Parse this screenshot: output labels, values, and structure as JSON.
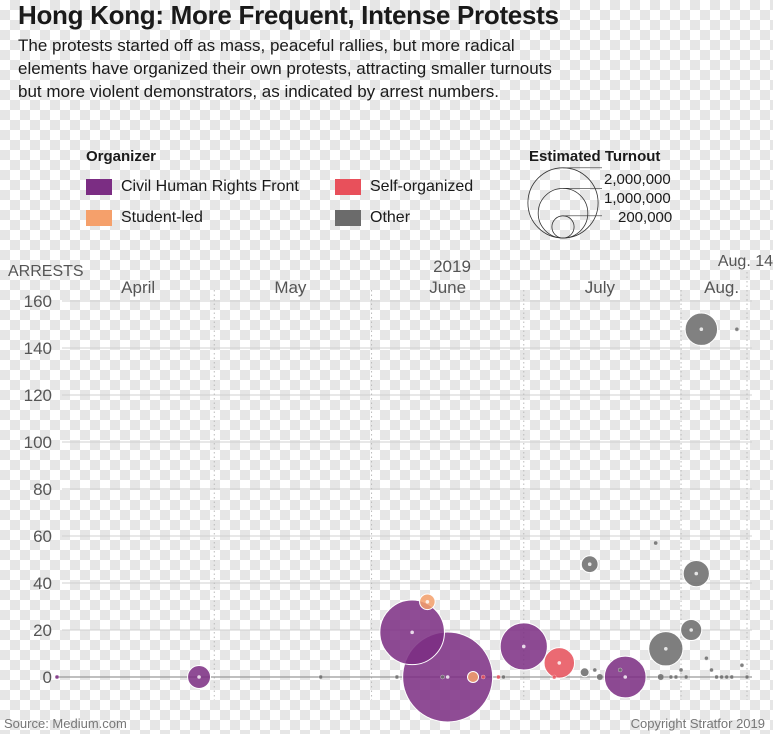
{
  "title": "Hong Kong: More Frequent, Intense Protests",
  "subtitle_lines": [
    "The protests started off as mass, peaceful rallies, but more radical",
    "elements have organized their own protests, attracting smaller turnouts",
    "but more violent demonstrators, as indicated by arrest numbers."
  ],
  "legend": {
    "organizer_heading": "Organizer",
    "turnout_heading": "Estimated Turnout",
    "organizers": [
      {
        "label": "Civil Human Rights Front",
        "color": "#7b2d83"
      },
      {
        "label": "Self-organized",
        "color": "#e8505b"
      },
      {
        "label": "Student-led",
        "color": "#f5a06b"
      },
      {
        "label": "Other",
        "color": "#6b6b6b"
      }
    ],
    "turnout_sizes": [
      "2,000,000",
      "1,000,000",
      "200,000"
    ]
  },
  "source": "Source: Medium.com",
  "copyright": "Copyright Stratfor 2019",
  "chart_data": {
    "type": "scatter",
    "ylabel": "ARRESTS",
    "year_label": "2019",
    "ylim": [
      0,
      160
    ],
    "yticks": [
      0,
      20,
      40,
      60,
      80,
      100,
      120,
      140,
      160
    ],
    "month_labels": [
      "April",
      "May",
      "June",
      "July",
      "Aug."
    ],
    "end_label": "Aug. 14",
    "grid": true,
    "series": [
      {
        "name": "Civil Human Rights Front",
        "color": "#7b2d83",
        "points": [
          {
            "date": "2019-03-31",
            "arrests": 0,
            "turnout": 2000
          },
          {
            "date": "2019-04-28",
            "arrests": 0,
            "turnout": 130000
          },
          {
            "date": "2019-06-09",
            "arrests": 19,
            "turnout": 1030000
          },
          {
            "date": "2019-06-16",
            "arrests": 0,
            "turnout": 2000000
          },
          {
            "date": "2019-07-01",
            "arrests": 13,
            "turnout": 550000
          },
          {
            "date": "2019-07-21",
            "arrests": 0,
            "turnout": 430000
          }
        ]
      },
      {
        "name": "Student-led",
        "color": "#f5a06b",
        "points": [
          {
            "date": "2019-06-12",
            "arrests": 32,
            "turnout": 60000
          },
          {
            "date": "2019-06-21",
            "arrests": 0,
            "turnout": 30000
          }
        ]
      },
      {
        "name": "Self-organized",
        "color": "#e8505b",
        "points": [
          {
            "date": "2019-06-23",
            "arrests": 0,
            "turnout": 1500
          },
          {
            "date": "2019-06-26",
            "arrests": 0,
            "turnout": 1500
          },
          {
            "date": "2019-07-07",
            "arrests": 0,
            "turnout": 1500
          },
          {
            "date": "2019-07-08",
            "arrests": 6,
            "turnout": 230000
          }
        ]
      },
      {
        "name": "Other",
        "color": "#6b6b6b",
        "points": [
          {
            "date": "2019-05-22",
            "arrests": 0,
            "turnout": 1500
          },
          {
            "date": "2019-06-06",
            "arrests": 0,
            "turnout": 1500
          },
          {
            "date": "2019-06-15",
            "arrests": 0,
            "turnout": 3000
          },
          {
            "date": "2019-06-27",
            "arrests": 0,
            "turnout": 1500
          },
          {
            "date": "2019-07-13",
            "arrests": 2,
            "turnout": 20000
          },
          {
            "date": "2019-07-14",
            "arrests": 48,
            "turnout": 70000
          },
          {
            "date": "2019-07-15",
            "arrests": 3,
            "turnout": 3000
          },
          {
            "date": "2019-07-16",
            "arrests": 0,
            "turnout": 10000
          },
          {
            "date": "2019-07-20",
            "arrests": 3,
            "turnout": 3000
          },
          {
            "date": "2019-07-27",
            "arrests": 57,
            "turnout": 4000
          },
          {
            "date": "2019-07-28",
            "arrests": 0,
            "turnout": 10000
          },
          {
            "date": "2019-07-29",
            "arrests": 12,
            "turnout": 290000
          },
          {
            "date": "2019-07-30",
            "arrests": 0,
            "turnout": 1500
          },
          {
            "date": "2019-07-31",
            "arrests": 0,
            "turnout": 1500
          },
          {
            "date": "2019-08-01",
            "arrests": 3,
            "turnout": 2000
          },
          {
            "date": "2019-08-02",
            "arrests": 0,
            "turnout": 1500
          },
          {
            "date": "2019-08-03",
            "arrests": 20,
            "turnout": 110000
          },
          {
            "date": "2019-08-04",
            "arrests": 44,
            "turnout": 170000
          },
          {
            "date": "2019-08-05",
            "arrests": 148,
            "turnout": 260000
          },
          {
            "date": "2019-08-06",
            "arrests": 8,
            "turnout": 2000
          },
          {
            "date": "2019-08-07",
            "arrests": 3,
            "turnout": 2000
          },
          {
            "date": "2019-08-08",
            "arrests": 0,
            "turnout": 2000
          },
          {
            "date": "2019-08-09",
            "arrests": 0,
            "turnout": 2000
          },
          {
            "date": "2019-08-10",
            "arrests": 0,
            "turnout": 2000
          },
          {
            "date": "2019-08-11",
            "arrests": 0,
            "turnout": 2000
          },
          {
            "date": "2019-08-12",
            "arrests": 148,
            "turnout": 3000
          },
          {
            "date": "2019-08-13",
            "arrests": 5,
            "turnout": 2500
          },
          {
            "date": "2019-08-14",
            "arrests": 0,
            "turnout": 1500
          }
        ]
      }
    ]
  }
}
